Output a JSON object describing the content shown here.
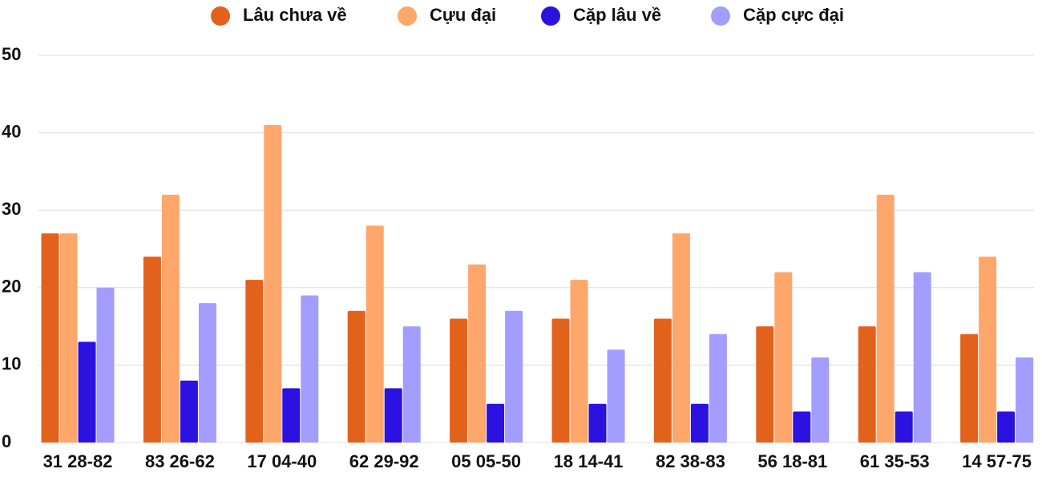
{
  "chart_data": {
    "type": "bar",
    "categories": [
      "31 28-82",
      "83 26-62",
      "17 04-40",
      "62 29-92",
      "05 05-50",
      "18 14-41",
      "82 38-83",
      "56 18-81",
      "61 35-53",
      "14 57-75"
    ],
    "series": [
      {
        "name": "Lâu chưa về",
        "color": "#e2621b",
        "values": [
          27,
          24,
          21,
          17,
          16,
          16,
          16,
          15,
          15,
          14
        ]
      },
      {
        "name": "Cựu đại",
        "color": "#ffa66b",
        "values": [
          27,
          32,
          41,
          28,
          23,
          21,
          27,
          22,
          32,
          24
        ]
      },
      {
        "name": "Cặp lâu về",
        "color": "#2b12e0",
        "values": [
          13,
          8,
          7,
          7,
          5,
          5,
          5,
          4,
          4,
          4
        ]
      },
      {
        "name": "Cặp cực đại",
        "color": "#a29dff",
        "values": [
          20,
          18,
          19,
          15,
          17,
          12,
          14,
          11,
          22,
          11
        ]
      }
    ],
    "ylim": [
      0,
      50
    ],
    "yticks": [
      0,
      10,
      20,
      30,
      40,
      50
    ],
    "grid": true,
    "legend": "top"
  }
}
